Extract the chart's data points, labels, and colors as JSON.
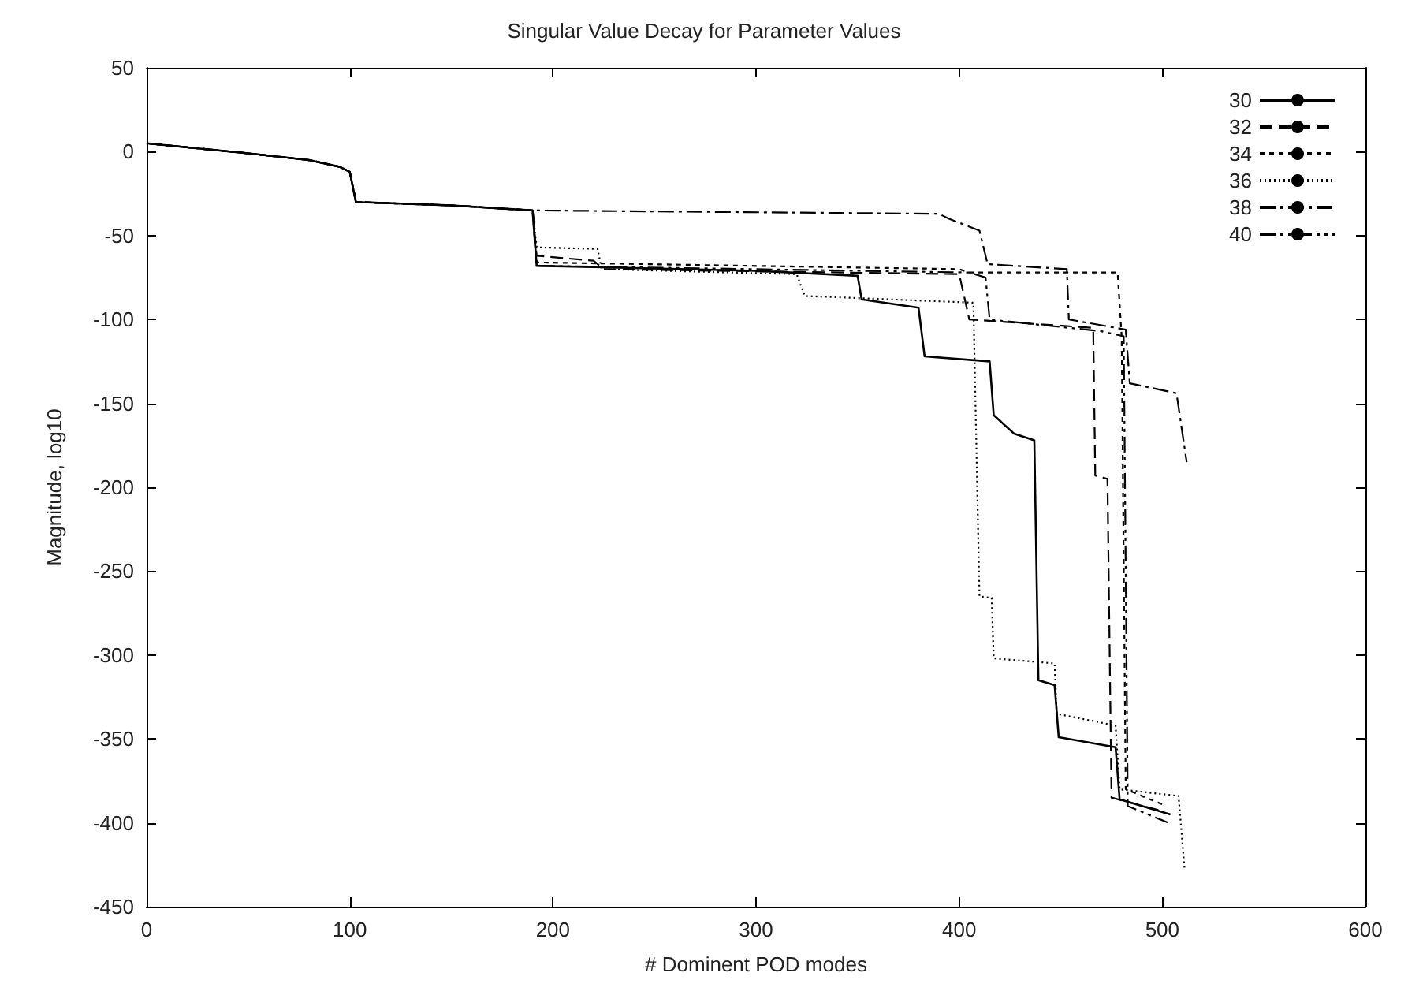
{
  "chart_data": {
    "type": "line",
    "title": "Singular Value Decay for Parameter Values",
    "xlabel": "# Dominent POD modes",
    "ylabel": "Magnitude, log10",
    "xlim": [
      0,
      600
    ],
    "xticks": [
      0,
      100,
      200,
      300,
      400,
      500,
      600
    ],
    "ylim": [
      -450,
      50
    ],
    "yticks": [
      -450,
      -400,
      -350,
      -300,
      -250,
      -200,
      -150,
      -100,
      -50,
      0,
      50
    ],
    "grid": false,
    "legend": "top right",
    "marker": "none",
    "series": [
      {
        "name": "30",
        "color": "#000000",
        "line_style": "solid",
        "x": [
          0,
          50,
          80,
          95,
          100,
          103,
          150,
          190,
          192,
          300,
          350,
          352,
          380,
          383,
          415,
          417,
          427,
          437,
          439,
          447,
          449,
          477,
          479,
          504
        ],
        "values": [
          5,
          -1,
          -5,
          -9,
          -12,
          -30,
          -32,
          -35,
          -68,
          -71,
          -74,
          -88,
          -93,
          -122,
          -125,
          -157,
          -168,
          -172,
          -315,
          -318,
          -349,
          -355,
          -386,
          -395
        ]
      },
      {
        "name": "32",
        "color": "#000000",
        "line_style": "dashed",
        "x": [
          0,
          50,
          80,
          95,
          100,
          103,
          150,
          190,
          192,
          220,
          225,
          400,
          405,
          466,
          467,
          473,
          475,
          500
        ],
        "values": [
          5,
          -1,
          -5,
          -9,
          -12,
          -30,
          -32,
          -35,
          -62,
          -65,
          -70,
          -73,
          -100,
          -105,
          -193,
          -195,
          -385,
          -393
        ]
      },
      {
        "name": "34",
        "color": "#000000",
        "line_style": "dashed-fine",
        "x": [
          0,
          50,
          80,
          95,
          100,
          103,
          150,
          190,
          192,
          400,
          405,
          478,
          480,
          482,
          502
        ],
        "values": [
          5,
          -1,
          -5,
          -9,
          -12,
          -30,
          -32,
          -35,
          -66,
          -70,
          -72,
          -72,
          -110,
          -380,
          -390
        ]
      },
      {
        "name": "36",
        "color": "#000000",
        "line_style": "dotted",
        "x": [
          0,
          50,
          80,
          95,
          100,
          103,
          150,
          190,
          192,
          222,
          224,
          320,
          324,
          407,
          410,
          416,
          417,
          447,
          448,
          477,
          479,
          508,
          511
        ],
        "values": [
          5,
          -1,
          -5,
          -9,
          -12,
          -30,
          -32,
          -35,
          -57,
          -58,
          -70,
          -73,
          -86,
          -90,
          -265,
          -266,
          -302,
          -305,
          -335,
          -342,
          -380,
          -384,
          -428
        ]
      },
      {
        "name": "38",
        "color": "#000000",
        "line_style": "dashdot",
        "x": [
          0,
          50,
          80,
          95,
          100,
          103,
          150,
          190,
          390,
          395,
          410,
          414,
          453,
          454,
          482,
          484,
          507,
          512
        ],
        "values": [
          5,
          -1,
          -5,
          -9,
          -12,
          -30,
          -32,
          -35,
          -37,
          -40,
          -47,
          -67,
          -70,
          -100,
          -106,
          -138,
          -144,
          -185
        ]
      },
      {
        "name": "40",
        "color": "#000000",
        "line_style": "dashdotdot",
        "x": [
          0,
          50,
          80,
          95,
          100,
          103,
          150,
          190,
          192,
          405,
          413,
          415,
          470,
          481,
          483,
          503
        ],
        "values": [
          5,
          -1,
          -5,
          -9,
          -12,
          -30,
          -32,
          -35,
          -68,
          -72,
          -75,
          -100,
          -107,
          -110,
          -390,
          -400
        ]
      }
    ]
  }
}
